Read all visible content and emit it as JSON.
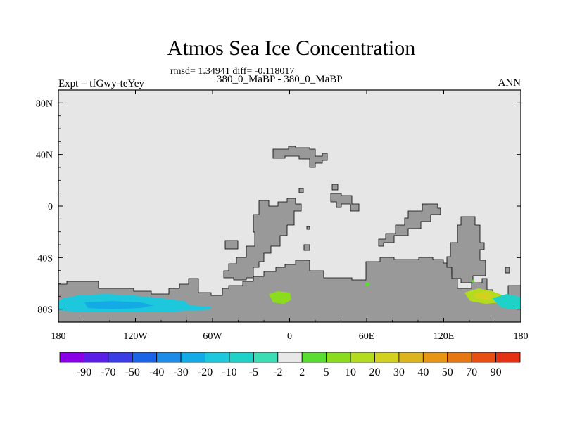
{
  "chart_data": {
    "type": "heatmap",
    "title": "Atmos Sea Ice Concentration",
    "subtitle_stats": "rmsd= 1.34941 diff= -0.118017",
    "subtitle_compare": "380_0_MaBP - 380_0_MaBP",
    "experiment": "Expt = tfGwy-teYey",
    "season": "ANN",
    "x_ticks": [
      "180",
      "120W",
      "60W",
      "0",
      "60E",
      "120E",
      "180"
    ],
    "x_range": [
      -180,
      180
    ],
    "y_ticks": [
      "80N",
      "40N",
      "0",
      "40S",
      "80S"
    ],
    "y_tick_values": [
      80,
      40,
      0,
      -40,
      -80
    ],
    "y_range": [
      -90,
      90
    ],
    "colorbar": {
      "labels": [
        "-90",
        "-70",
        "-50",
        "-40",
        "-30",
        "-20",
        "-10",
        "-5",
        "-2",
        "2",
        "5",
        "10",
        "20",
        "30",
        "40",
        "50",
        "70",
        "90"
      ],
      "colors": [
        "#8a00e6",
        "#5a1ee6",
        "#3c3ce6",
        "#1c64e6",
        "#1e8ce6",
        "#14aae6",
        "#1ec8dc",
        "#1ed2c8",
        "#3cdcb4",
        "#e8e8e8",
        "#5adc32",
        "#8cdc1e",
        "#b4dc1e",
        "#d2d21e",
        "#dcb41e",
        "#e69614",
        "#e67814",
        "#e65014",
        "#e63214"
      ]
    },
    "colors": {
      "land": "#999999",
      "ocean": "#e6e6e6"
    }
  }
}
